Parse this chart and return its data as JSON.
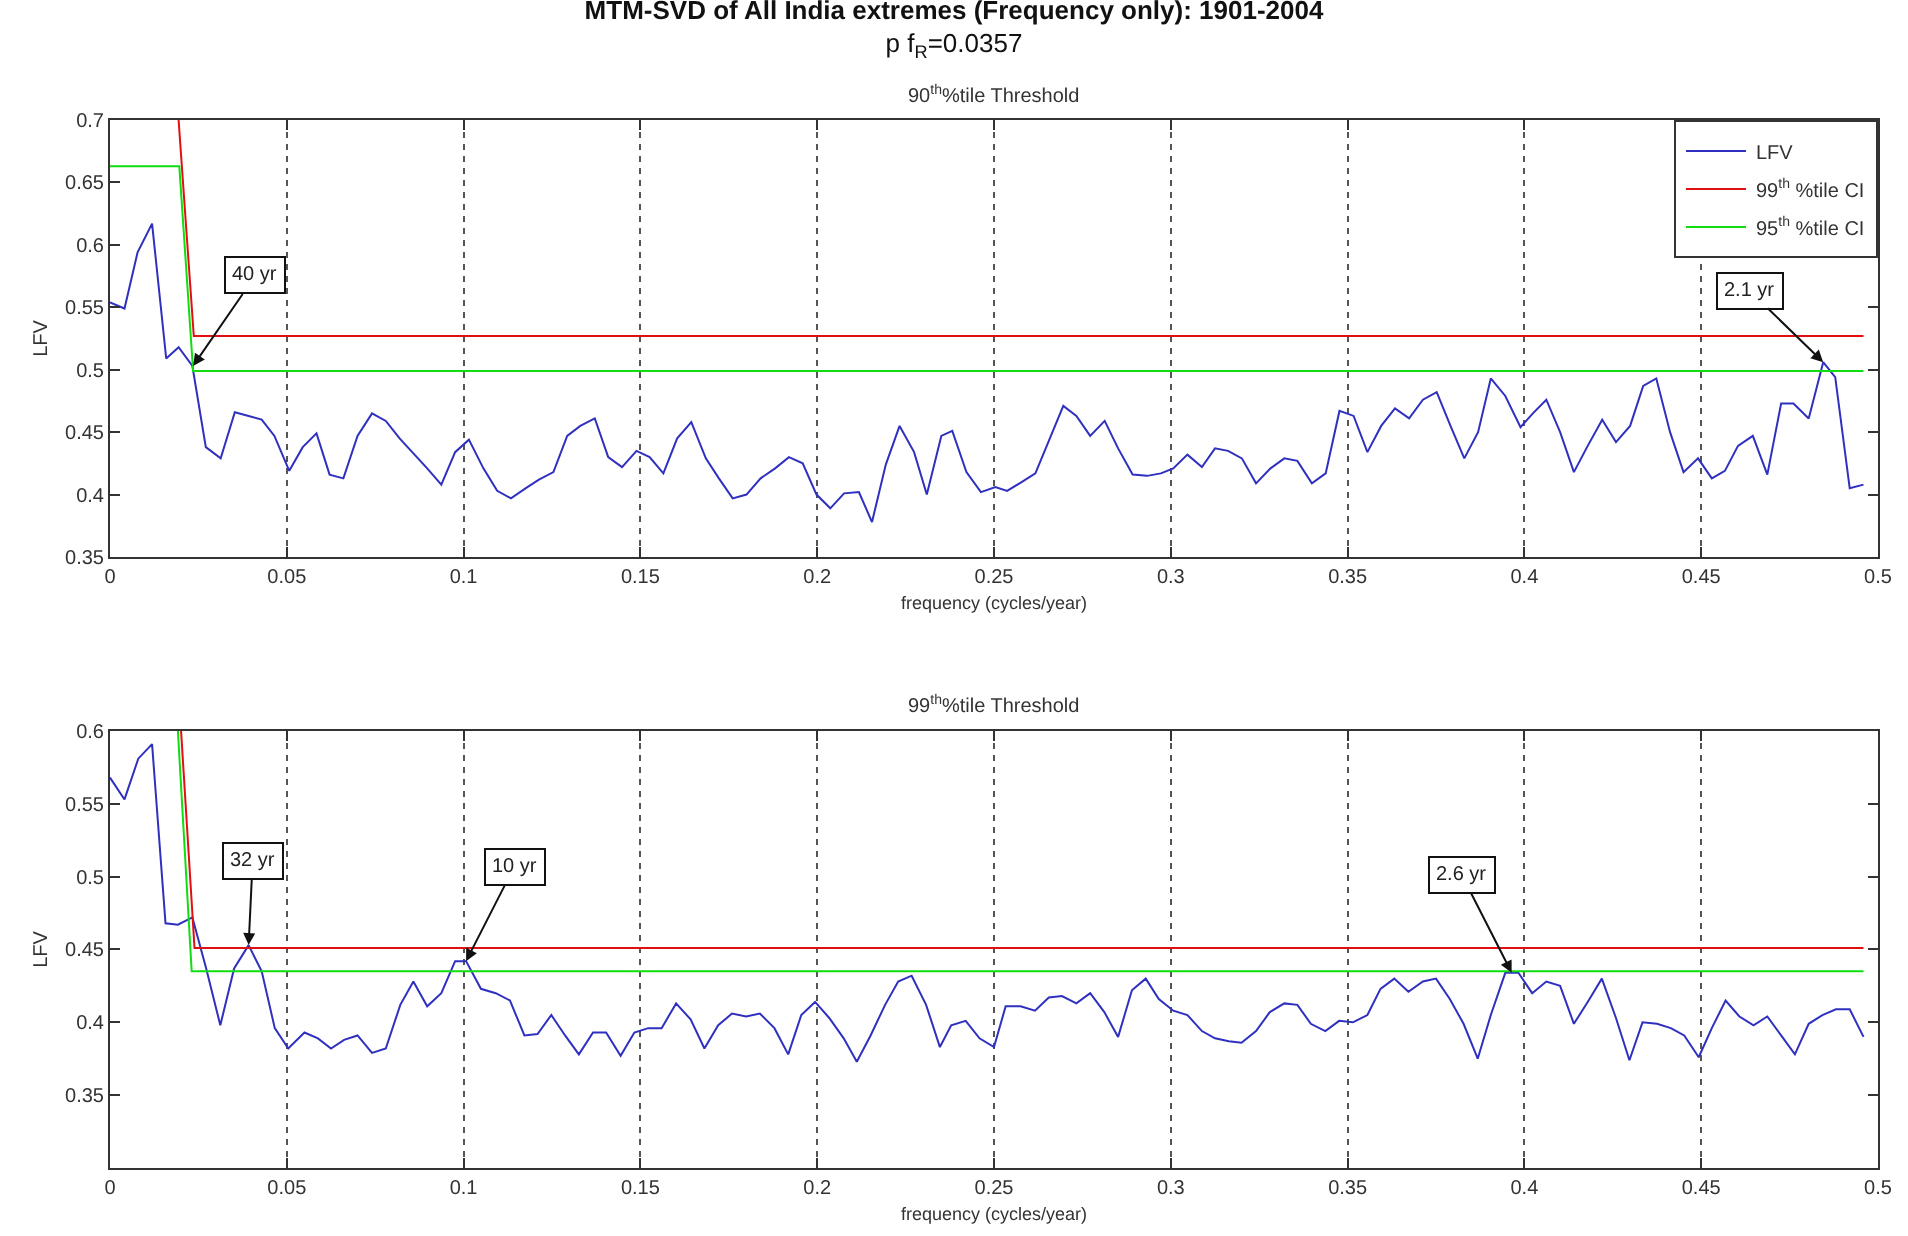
{
  "chart_data": [
    {
      "type": "line",
      "title": "MTM-SVD of All India extremes (Frequency only): 1901-2004",
      "subtitle": "p f$_{R}$=0.0357",
      "xlabel": "frequency (cycles/year)",
      "ylabel": "LFV",
      "xlim": [
        0,
        0.5
      ],
      "xticks": [
        0,
        0.05,
        0.1,
        0.15,
        0.2,
        0.25,
        0.3,
        0.35,
        0.4,
        0.45,
        0.5
      ],
      "ylim": [
        0.35,
        0.7
      ],
      "yticks": [
        0.35,
        0.4,
        0.45,
        0.5,
        0.55,
        0.6,
        0.65,
        0.7
      ],
      "grid": "x",
      "legend": "top right",
      "annotations": [
        "90$^{th}$%tile Threshold",
        {
          "text": "40 yr",
          "x": 0.0235,
          "y": 0.503
        },
        {
          "text": "2.1 yr",
          "x": 0.4845,
          "y": 0.506
        }
      ],
      "series": [
        {
          "name": "LFV",
          "color": "#3030c0",
          "x": [
            0,
            0.0041,
            0.0078,
            0.0119,
            0.0159,
            0.0194,
            0.0233,
            0.0271,
            0.0313,
            0.0353,
            0.0392,
            0.0429,
            0.0465,
            0.0507,
            0.0545,
            0.0584,
            0.0621,
            0.066,
            0.07,
            0.0741,
            0.078,
            0.0819,
            0.0858,
            0.0897,
            0.0937,
            0.0976,
            0.1015,
            0.1056,
            0.1095,
            0.1134,
            0.1175,
            0.1213,
            0.1254,
            0.1293,
            0.133,
            0.1371,
            0.1409,
            0.1448,
            0.1489,
            0.1526,
            0.1565,
            0.1604,
            0.1644,
            0.1685,
            0.1722,
            0.1761,
            0.18,
            0.184,
            0.1881,
            0.192,
            0.1959,
            0.1998,
            0.2037,
            0.2076,
            0.2118,
            0.2155,
            0.2194,
            0.2233,
            0.2274,
            0.231,
            0.2351,
            0.2382,
            0.2422,
            0.2463,
            0.2504,
            0.2537,
            0.2578,
            0.2617,
            0.2658,
            0.2696,
            0.2733,
            0.2772,
            0.2813,
            0.2851,
            0.2892,
            0.2933,
            0.2972,
            0.3007,
            0.3047,
            0.3088,
            0.3125,
            0.3162,
            0.3201,
            0.3241,
            0.3282,
            0.3321,
            0.3358,
            0.3399,
            0.3438,
            0.3477,
            0.3517,
            0.3556,
            0.3595,
            0.3634,
            0.3674,
            0.3713,
            0.3752,
            0.3791,
            0.383,
            0.3869,
            0.3905,
            0.3946,
            0.3989,
            0.4024,
            0.4062,
            0.4101,
            0.414,
            0.4179,
            0.422,
            0.4259,
            0.4299,
            0.4336,
            0.4373,
            0.4412,
            0.445,
            0.4491,
            0.453,
            0.4567,
            0.4604,
            0.4646,
            0.4687,
            0.4726,
            0.4761,
            0.4804,
            0.4845,
            0.4879,
            0.492,
            0.4959
          ],
          "values": [
            0.554,
            0.549,
            0.594,
            0.617,
            0.509,
            0.518,
            0.503,
            0.438,
            0.429,
            0.466,
            0.463,
            0.46,
            0.447,
            0.419,
            0.438,
            0.449,
            0.416,
            0.413,
            0.447,
            0.465,
            0.459,
            0.445,
            0.433,
            0.421,
            0.408,
            0.434,
            0.444,
            0.421,
            0.403,
            0.397,
            0.405,
            0.412,
            0.418,
            0.447,
            0.455,
            0.461,
            0.43,
            0.422,
            0.435,
            0.43,
            0.417,
            0.445,
            0.458,
            0.429,
            0.413,
            0.397,
            0.4,
            0.413,
            0.421,
            0.43,
            0.425,
            0.4,
            0.389,
            0.401,
            0.402,
            0.378,
            0.424,
            0.455,
            0.434,
            0.4,
            0.447,
            0.451,
            0.418,
            0.402,
            0.406,
            0.403,
            0.41,
            0.417,
            0.445,
            0.471,
            0.463,
            0.447,
            0.459,
            0.437,
            0.416,
            0.415,
            0.417,
            0.421,
            0.432,
            0.422,
            0.437,
            0.435,
            0.429,
            0.409,
            0.421,
            0.429,
            0.427,
            0.409,
            0.417,
            0.467,
            0.463,
            0.434,
            0.455,
            0.469,
            0.461,
            0.476,
            0.482,
            0.455,
            0.429,
            0.45,
            0.493,
            0.479,
            0.454,
            0.465,
            0.476,
            0.45,
            0.418,
            0.439,
            0.46,
            0.442,
            0.455,
            0.487,
            0.493,
            0.45,
            0.418,
            0.429,
            0.413,
            0.419,
            0.439,
            0.447,
            0.416,
            0.473,
            0.473,
            0.461,
            0.506,
            0.494,
            0.405,
            0.408
          ]
        },
        {
          "name": "99$^{th}$ %tile CI",
          "color": "#e01010",
          "x": [
            0.0194,
            0.0237,
            0.4959
          ],
          "values": [
            0.7,
            0.527,
            0.527
          ]
        },
        {
          "name": "95$^{th}$ %tile CI",
          "color": "#10dd10",
          "x": [
            0,
            0.0196,
            0.0235,
            0.4959
          ],
          "values": [
            0.663,
            0.663,
            0.499,
            0.499
          ]
        }
      ]
    },
    {
      "type": "line",
      "title": "99$^{th}$%tile Threshold",
      "xlabel": "frequency (cycles/year)",
      "ylabel": "LFV",
      "xlim": [
        0,
        0.5
      ],
      "xticks": [
        0,
        0.05,
        0.1,
        0.15,
        0.2,
        0.25,
        0.3,
        0.35,
        0.4,
        0.45,
        0.5
      ],
      "ylim": [
        0.3,
        0.6
      ],
      "yticks": [
        {
          "value": 0.3,
          "label": null
        },
        0.35,
        0.4,
        0.45,
        0.5,
        0.55,
        0.6
      ],
      "grid": "x",
      "annotations": [
        {
          "text": "32 yr",
          "x": 0.0392,
          "y": 0.453
        },
        {
          "text": "10 yr",
          "x": 0.1007,
          "y": 0.442
        },
        {
          "text": "2.6 yr",
          "x": 0.3964,
          "y": 0.434
        }
      ],
      "series": [
        {
          "color": "#3030c0",
          "x": [
            0,
            0.0041,
            0.008,
            0.0119,
            0.0157,
            0.0192,
            0.0233,
            0.0272,
            0.0312,
            0.0351,
            0.0392,
            0.0429,
            0.0466,
            0.0504,
            0.055,
            0.0588,
            0.0625,
            0.0662,
            0.07,
            0.0741,
            0.078,
            0.0821,
            0.0858,
            0.0897,
            0.0937,
            0.0976,
            0.1007,
            0.1049,
            0.1091,
            0.1131,
            0.1172,
            0.1209,
            0.1248,
            0.1287,
            0.1326,
            0.1366,
            0.1403,
            0.1444,
            0.1483,
            0.1522,
            0.156,
            0.1601,
            0.1642,
            0.1681,
            0.172,
            0.1759,
            0.1799,
            0.1838,
            0.1879,
            0.1918,
            0.1955,
            0.1994,
            0.2034,
            0.2075,
            0.2112,
            0.2151,
            0.2192,
            0.2229,
            0.2267,
            0.2308,
            0.2347,
            0.2379,
            0.242,
            0.2459,
            0.25,
            0.2533,
            0.2575,
            0.2616,
            0.2655,
            0.2692,
            0.2733,
            0.2772,
            0.2812,
            0.2851,
            0.289,
            0.2929,
            0.2966,
            0.3007,
            0.3047,
            0.3088,
            0.3125,
            0.3164,
            0.32,
            0.3241,
            0.328,
            0.3321,
            0.3358,
            0.3396,
            0.3437,
            0.3476,
            0.3515,
            0.3556,
            0.3593,
            0.3632,
            0.3672,
            0.3713,
            0.375,
            0.3789,
            0.3828,
            0.3868,
            0.3905,
            0.3946,
            0.3983,
            0.4022,
            0.4062,
            0.4101,
            0.414,
            0.4179,
            0.4219,
            0.4259,
            0.4297,
            0.4334,
            0.4375,
            0.4414,
            0.4452,
            0.4493,
            0.453,
            0.4569,
            0.4608,
            0.4648,
            0.4687,
            0.4726,
            0.4765,
            0.4804,
            0.4843,
            0.4881,
            0.492,
            0.4959
          ],
          "values": [
            0.568,
            0.553,
            0.581,
            0.591,
            0.468,
            0.467,
            0.472,
            0.437,
            0.398,
            0.437,
            0.453,
            0.435,
            0.396,
            0.382,
            0.393,
            0.389,
            0.382,
            0.388,
            0.391,
            0.379,
            0.382,
            0.412,
            0.428,
            0.411,
            0.42,
            0.442,
            0.442,
            0.423,
            0.42,
            0.415,
            0.391,
            0.392,
            0.405,
            0.391,
            0.378,
            0.393,
            0.393,
            0.377,
            0.393,
            0.396,
            0.396,
            0.413,
            0.402,
            0.382,
            0.398,
            0.406,
            0.404,
            0.406,
            0.396,
            0.378,
            0.405,
            0.414,
            0.403,
            0.389,
            0.373,
            0.391,
            0.412,
            0.428,
            0.432,
            0.412,
            0.383,
            0.398,
            0.401,
            0.389,
            0.383,
            0.411,
            0.411,
            0.408,
            0.417,
            0.418,
            0.413,
            0.42,
            0.407,
            0.39,
            0.422,
            0.43,
            0.416,
            0.408,
            0.405,
            0.394,
            0.389,
            0.387,
            0.386,
            0.394,
            0.407,
            0.413,
            0.412,
            0.399,
            0.394,
            0.401,
            0.4,
            0.405,
            0.423,
            0.43,
            0.421,
            0.428,
            0.43,
            0.416,
            0.399,
            0.375,
            0.405,
            0.434,
            0.434,
            0.42,
            0.428,
            0.425,
            0.399,
            0.414,
            0.43,
            0.403,
            0.374,
            0.4,
            0.399,
            0.396,
            0.391,
            0.376,
            0.396,
            0.415,
            0.404,
            0.398,
            0.404,
            0.391,
            0.378,
            0.399,
            0.405,
            0.409,
            0.409,
            0.39
          ]
        },
        {
          "color": "#e01010",
          "x": [
            0.0201,
            0.0239,
            0.4959
          ],
          "values": [
            0.6,
            0.451,
            0.451
          ]
        },
        {
          "color": "#10dd10",
          "x": [
            0.0192,
            0.0231,
            0.4959
          ],
          "values": [
            0.6,
            0.435,
            0.435
          ]
        }
      ]
    }
  ]
}
